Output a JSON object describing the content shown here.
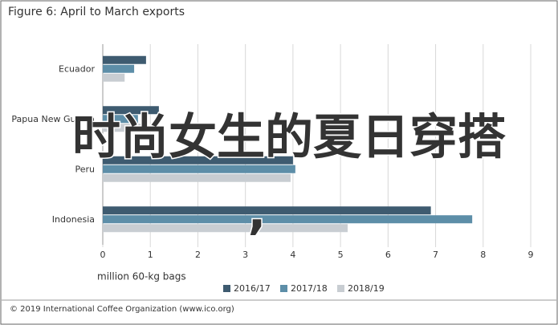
{
  "chart_data": {
    "type": "hbar",
    "title": "Figure 6: April to March exports",
    "categories": [
      "Ecuador",
      "Papua New Guinea",
      "Peru",
      "Indonesia"
    ],
    "series": [
      {
        "name": "2016/17",
        "color": "#3e5b70",
        "values": [
          0.91,
          1.18,
          4.0,
          6.9
        ]
      },
      {
        "name": "2017/18",
        "color": "#5d8ea8",
        "values": [
          0.66,
          0.74,
          4.05,
          7.77
        ]
      },
      {
        "name": "2018/19",
        "color": "#c8cdd2",
        "values": [
          0.46,
          0.88,
          3.95,
          5.15
        ]
      }
    ],
    "xlabel": "million 60-kg bags",
    "xlim": [
      0,
      9
    ],
    "xticks": [
      0,
      1,
      2,
      3,
      4,
      5,
      6,
      7,
      8,
      9
    ],
    "grid": true,
    "source": "© 2019 International Coffee Organization (www.ico.org)",
    "overlay_text": "时尚女生的夏日穿搭",
    "overlay_mark": ","
  }
}
